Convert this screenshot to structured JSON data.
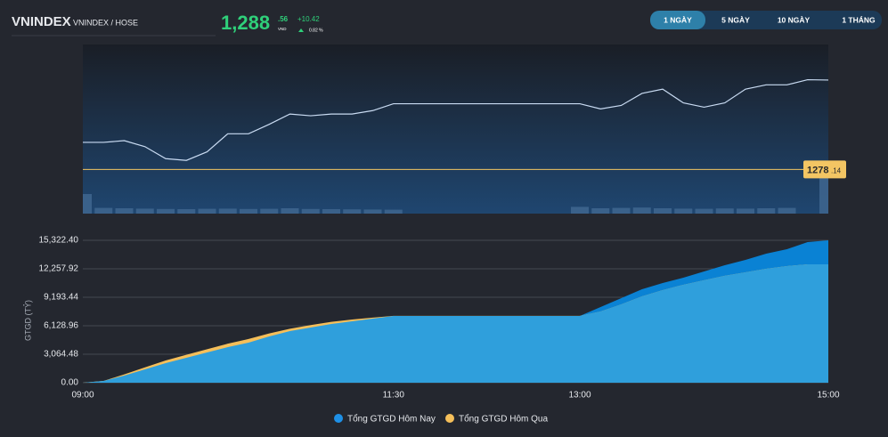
{
  "header": {
    "title": "VNINDEX",
    "subtitle": "VNINDEX / HOSE",
    "price": "1,288",
    "price_decimals": ".56",
    "currency": "VND",
    "change": "+10.42",
    "change_percent": "0.82 %"
  },
  "tabs": [
    "1 NGÀY",
    "5 NGÀY",
    "10 NGÀY",
    "1 THÁNG"
  ],
  "active_tab": 0,
  "chart_data": [
    {
      "type": "line",
      "x": [
        "09:00",
        "09:10",
        "09:20",
        "09:30",
        "09:40",
        "09:50",
        "10:00",
        "10:10",
        "10:20",
        "10:30",
        "10:40",
        "10:50",
        "11:00",
        "11:10",
        "11:20",
        "11:30",
        "11:40",
        "11:50",
        "12:00",
        "12:10",
        "12:20",
        "12:30",
        "12:40",
        "12:50",
        "13:00",
        "13:10",
        "13:20",
        "13:30",
        "13:40",
        "13:50",
        "14:00",
        "14:10",
        "14:20",
        "14:30",
        "14:40",
        "14:50",
        "15:00"
      ],
      "xlim": [
        "09:00",
        "15:00"
      ],
      "ylim": [
        1273,
        1292.7
      ],
      "values": [
        1281.3,
        1281.3,
        1281.5,
        1280.8,
        1279.4,
        1279.2,
        1280.2,
        1282.3,
        1282.3,
        1283.4,
        1284.6,
        1284.4,
        1284.6,
        1284.6,
        1285.0,
        1285.8,
        1285.8,
        1285.8,
        1285.8,
        1285.8,
        1285.8,
        1285.8,
        1285.8,
        1285.8,
        1285.8,
        1285.2,
        1285.6,
        1287.0,
        1287.5,
        1285.9,
        1285.4,
        1285.9,
        1287.5,
        1288.0,
        1288.0,
        1288.6,
        1288.56
      ],
      "color": "#c9dbf2",
      "volume": [
        1100,
        320,
        300,
        280,
        260,
        250,
        270,
        280,
        260,
        270,
        300,
        260,
        250,
        240,
        230,
        220,
        null,
        null,
        null,
        null,
        null,
        null,
        null,
        null,
        380,
        300,
        320,
        340,
        300,
        280,
        270,
        290,
        280,
        300,
        320,
        null,
        2000
      ],
      "volume_ylim": [
        0,
        2500
      ],
      "volume_color": "#40668f",
      "reference": 1278.14,
      "reference_label": "1278",
      "reference_label_decimals": ".14",
      "reference_color": "#f3c563"
    },
    {
      "type": "area",
      "y_label": "GTGD (TỶ)",
      "x": [
        "09:00",
        "09:10",
        "09:20",
        "09:30",
        "09:40",
        "09:50",
        "10:00",
        "10:10",
        "10:20",
        "10:30",
        "10:40",
        "10:50",
        "11:00",
        "11:10",
        "11:20",
        "11:30",
        "11:40",
        "11:50",
        "12:00",
        "12:10",
        "12:20",
        "12:30",
        "12:40",
        "12:50",
        "13:00",
        "13:10",
        "13:20",
        "13:30",
        "13:40",
        "13:50",
        "14:00",
        "14:10",
        "14:20",
        "14:30",
        "14:40",
        "14:50",
        "15:00"
      ],
      "xlim": [
        "09:00",
        "15:00"
      ],
      "xticks": [
        "09:00",
        "11:30",
        "13:00",
        "15:00"
      ],
      "ylim": [
        0,
        15322.4
      ],
      "yticks": [
        {
          "value": 0,
          "label": "0.00"
        },
        {
          "value": 3064.48,
          "label": "3,064.48"
        },
        {
          "value": 6128.96,
          "label": "6,128.96"
        },
        {
          "value": 9193.44,
          "label": "9,193.44"
        },
        {
          "value": 12257.92,
          "label": "12,257.92"
        },
        {
          "value": 15322.4,
          "label": "15,322.40"
        }
      ],
      "grid": true,
      "series": [
        {
          "name": "Tổng GTGD Hôm Nay",
          "color": "#0a82d4",
          "values": [
            0,
            190,
            770,
            1440,
            2110,
            2680,
            3260,
            3830,
            4310,
            4980,
            5550,
            5940,
            6320,
            6610,
            6900,
            7180,
            7180,
            7180,
            7180,
            7180,
            7180,
            7180,
            7180,
            7180,
            7180,
            8140,
            9100,
            10060,
            10730,
            11300,
            11970,
            12640,
            13220,
            13890,
            14370,
            15130,
            15322.4
          ]
        },
        {
          "name": "Tổng GTGD Hôm Qua",
          "color": "#f5bf5a",
          "values": [
            0,
            190,
            900,
            1650,
            2400,
            3000,
            3600,
            4200,
            4700,
            5300,
            5800,
            6200,
            6550,
            6800,
            7000,
            7200,
            7200,
            7200,
            7200,
            7200,
            7200,
            7200,
            7200,
            7200,
            7200,
            7660,
            8430,
            9290,
            9960,
            10540,
            11020,
            11500,
            11880,
            12260,
            12550,
            12740,
            12740
          ]
        }
      ]
    }
  ]
}
